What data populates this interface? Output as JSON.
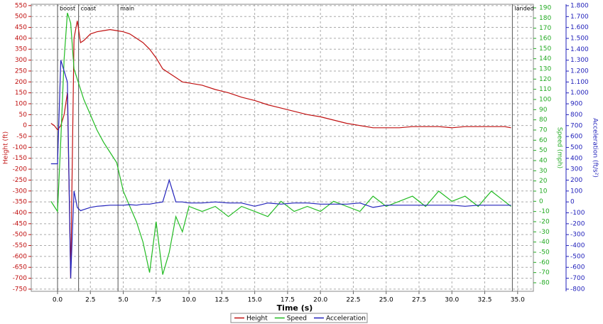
{
  "chart_data": {
    "type": "line",
    "xlabel": "Time (s)",
    "ylabel": "Height (ft)",
    "y2label": "Speed (mph)",
    "y3label": "Acceleration (ft/s²)",
    "x": [
      -0.5,
      -0.25,
      0,
      0.25,
      0.5,
      0.75,
      1.0,
      1.25,
      1.5,
      1.75,
      2.0,
      2.5,
      3,
      3.5,
      4,
      4.5,
      5,
      5.5,
      6,
      6.5,
      7,
      7.5,
      8,
      8.5,
      9,
      9.5,
      10,
      11,
      12,
      13,
      14,
      15,
      16,
      17,
      18,
      19,
      20,
      21,
      22,
      23,
      24,
      25,
      26,
      27,
      28,
      29,
      30,
      31,
      32,
      33,
      34,
      34.5
    ],
    "series": [
      {
        "name": "Height",
        "color": "#c01010",
        "axis": "y",
        "values": [
          10,
          0,
          -20,
          0,
          50,
          150,
          -700,
          400,
          480,
          380,
          390,
          420,
          430,
          435,
          440,
          435,
          430,
          420,
          400,
          380,
          350,
          310,
          260,
          240,
          220,
          200,
          195,
          185,
          165,
          150,
          130,
          115,
          95,
          80,
          65,
          50,
          40,
          25,
          10,
          0,
          -10,
          -10,
          -10,
          -5,
          -5,
          -5,
          -10,
          -5,
          -5,
          -5,
          -5,
          -10
        ]
      },
      {
        "name": "Speed",
        "color": "#22bb22",
        "axis": "y2",
        "values": [
          0,
          -5,
          -10,
          60,
          140,
          185,
          175,
          130,
          120,
          110,
          100,
          85,
          70,
          58,
          48,
          38,
          10,
          -5,
          -20,
          -40,
          -70,
          -20,
          -72,
          -50,
          -15,
          -30,
          -5,
          -10,
          -5,
          -15,
          -5,
          -10,
          -15,
          0,
          -10,
          -5,
          -10,
          0,
          -5,
          -10,
          5,
          -5,
          0,
          5,
          -5,
          10,
          0,
          5,
          -5,
          10,
          0,
          -5
        ]
      },
      {
        "name": "Acceleration",
        "color": "#2222bb",
        "axis": "y3",
        "values": [
          350,
          350,
          350,
          1300,
          1200,
          1100,
          -700,
          100,
          -50,
          -80,
          -70,
          -50,
          -40,
          -35,
          -30,
          -30,
          -30,
          -25,
          -30,
          -20,
          -20,
          -10,
          0,
          200,
          0,
          0,
          -10,
          -10,
          0,
          -10,
          -10,
          -40,
          -10,
          -20,
          -10,
          -10,
          -20,
          -20,
          -20,
          -10,
          -50,
          -30,
          -30,
          -30,
          -30,
          -30,
          -30,
          -40,
          -30,
          -30,
          -30,
          -30
        ]
      }
    ],
    "events": [
      {
        "x": 0,
        "label": "boost"
      },
      {
        "x": 1.6,
        "label": "coast"
      },
      {
        "x": 4.6,
        "label": "main"
      },
      {
        "x": 34.6,
        "label": "landed"
      }
    ],
    "xlim": [
      -2,
      36.2
    ],
    "xticks": [
      {
        "value": 0,
        "label": "0.0"
      },
      2.5,
      {
        "value": 5,
        "label": "5.0"
      },
      7.5,
      {
        "value": 10,
        "label": "10.0"
      },
      12.5,
      {
        "value": 15,
        "label": "15.0"
      },
      17.5,
      {
        "value": 20,
        "label": "20.0"
      },
      22.5,
      {
        "value": 25,
        "label": "25.0"
      },
      27.5,
      {
        "value": 30,
        "label": "30.0"
      },
      32.5,
      {
        "value": 35,
        "label": "35.0"
      }
    ],
    "ylim": [
      -760,
      556
    ],
    "yticks": [
      -750,
      -700,
      -650,
      -600,
      -550,
      -500,
      -450,
      -400,
      -350,
      -300,
      -250,
      -200,
      -150,
      -100,
      -50,
      0,
      50,
      100,
      150,
      200,
      250,
      300,
      350,
      400,
      450,
      500,
      550
    ],
    "y2lim": [
      -88.4,
      193.5
    ],
    "y2ticks": [
      -80,
      -70,
      -60,
      -50,
      -40,
      -30,
      -20,
      -10,
      0,
      10,
      20,
      30,
      40,
      50,
      60,
      70,
      80,
      90,
      100,
      110,
      120,
      130,
      140,
      150,
      160,
      170,
      180,
      190
    ],
    "y3lim": [
      -820,
      1813
    ],
    "y3ticks": [
      -800,
      -700,
      -600,
      -500,
      -400,
      -300,
      -200,
      -100,
      0,
      100,
      200,
      300,
      400,
      500,
      600,
      700,
      800,
      900,
      {
        "value": 1000,
        "label": "1.000"
      },
      {
        "value": 1100,
        "label": "1.100"
      },
      {
        "value": 1200,
        "label": "1.200"
      },
      {
        "value": 1300,
        "label": "1.300"
      },
      {
        "value": 1400,
        "label": "1.400"
      },
      {
        "value": 1500,
        "label": "1.500"
      },
      {
        "value": 1600,
        "label": "1.600"
      },
      {
        "value": 1700,
        "label": "1.700"
      },
      {
        "value": 1800,
        "label": "1.800"
      }
    ],
    "grid": true,
    "legend": "bottom"
  }
}
